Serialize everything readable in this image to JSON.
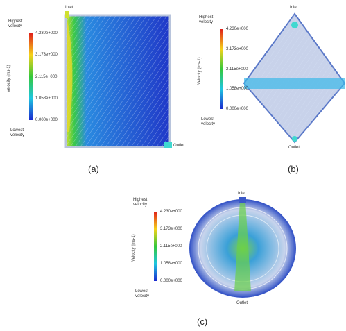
{
  "panels": [
    {
      "caption": "(a)",
      "inlet": "Inlet",
      "outlet": "Outlet",
      "legend": {
        "top": "Highest velocity",
        "axis": "Velocity (ms-1)",
        "ticks": [
          "4.230e+000",
          "3.173e+000",
          "2.115e+000",
          "1.058e+000",
          "0.000e+000"
        ],
        "bottom": "Lowest velocity"
      }
    },
    {
      "caption": "(b)",
      "inlet": "Inlet",
      "outlet": "Outlet",
      "legend": {
        "top": "Highest velocity",
        "axis": "Velocity (ms-1)",
        "ticks": [
          "4.230e+000",
          "3.173e+000",
          "2.115e+000",
          "1.058e+000",
          "0.000e+000"
        ],
        "bottom": "Lowest velocity"
      }
    },
    {
      "caption": "(c)",
      "inlet": "Inlet",
      "outlet": "Outlet",
      "legend": {
        "top": "Highest velocity",
        "axis": "Velocity (ms-1)",
        "ticks": [
          "4.230e+000",
          "3.173e+000",
          "2.115e+000",
          "1.058e+000",
          "0.000e+000"
        ],
        "bottom": "Lowest velocity"
      }
    }
  ]
}
